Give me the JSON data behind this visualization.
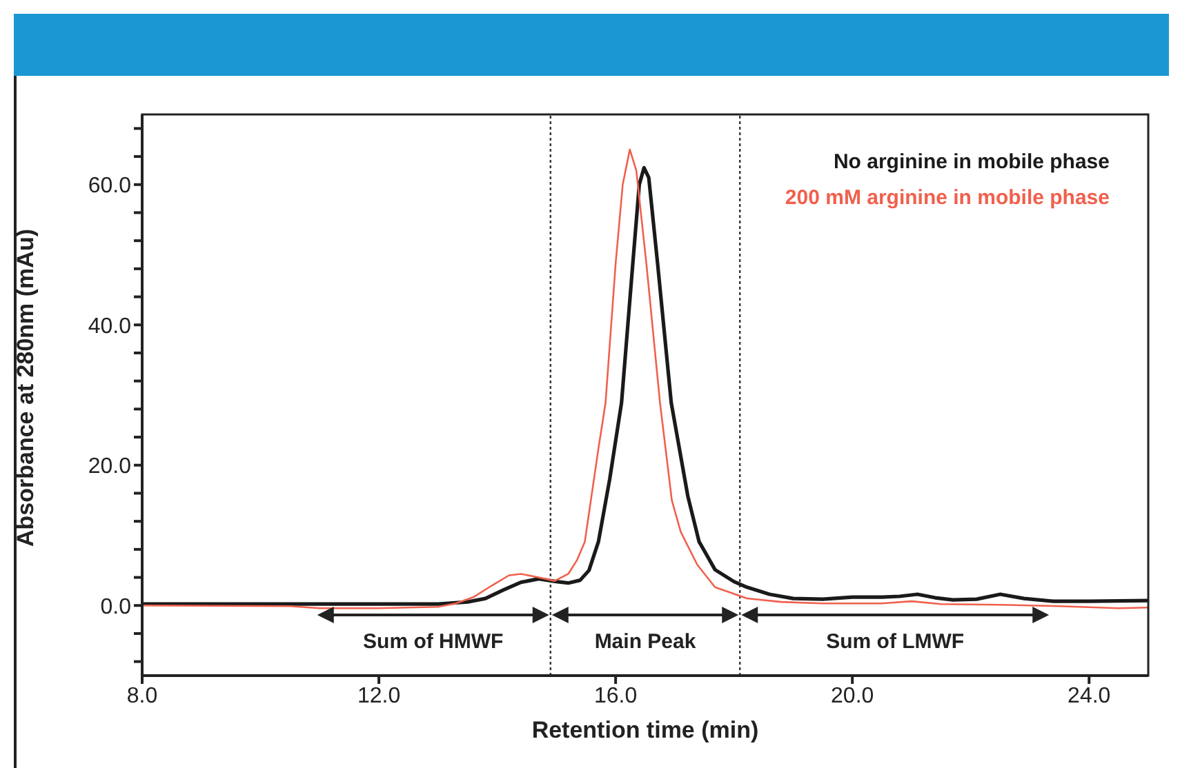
{
  "chart_data": {
    "type": "line",
    "xlabel": "Retention time (min)",
    "ylabel": "Absorbance at 280nm (mAu)",
    "xlim": [
      8,
      25
    ],
    "xticks": [
      {
        "value": 8,
        "label": "8.0"
      },
      {
        "value": 12,
        "label": "12.0"
      },
      {
        "value": 16,
        "label": "16.0"
      },
      {
        "value": 20,
        "label": "20.0"
      },
      {
        "value": 24,
        "label": "24.0"
      }
    ],
    "ylim": [
      -10,
      70
    ],
    "yticks": [
      {
        "value": -8,
        "label": null
      },
      {
        "value": -4,
        "label": null
      },
      {
        "value": 0,
        "label": "0.0"
      },
      {
        "value": 4,
        "label": null
      },
      {
        "value": 8,
        "label": null
      },
      {
        "value": 12,
        "label": null
      },
      {
        "value": 16,
        "label": null
      },
      {
        "value": 20,
        "label": "20.0"
      },
      {
        "value": 24,
        "label": null
      },
      {
        "value": 28,
        "label": null
      },
      {
        "value": 32,
        "label": null
      },
      {
        "value": 36,
        "label": null
      },
      {
        "value": 40,
        "label": "40.0"
      },
      {
        "value": 44,
        "label": null
      },
      {
        "value": 48,
        "label": null
      },
      {
        "value": 52,
        "label": null
      },
      {
        "value": 56,
        "label": null
      },
      {
        "value": 60,
        "label": "60.0"
      },
      {
        "value": 64,
        "label": null
      },
      {
        "value": 68,
        "label": null
      }
    ],
    "grid": false,
    "legend": "top right",
    "marker": "none",
    "line_style": "solid",
    "series": [
      {
        "name": "No arginine in mobile phase",
        "color": "#1a1a1a",
        "x": [
          8,
          10,
          12,
          13,
          13.5,
          13.8,
          14.1,
          14.4,
          14.7,
          15.0,
          15.2,
          15.4,
          15.55,
          15.71,
          15.9,
          16.1,
          16.29,
          16.4,
          16.48,
          16.56,
          16.71,
          16.94,
          17.22,
          17.41,
          17.68,
          18.0,
          18.22,
          18.6,
          19.0,
          19.5,
          20.0,
          20.5,
          20.8,
          21.1,
          21.4,
          21.7,
          22.1,
          22.5,
          22.9,
          23.4,
          24,
          25
        ],
        "values": [
          0.2,
          0.2,
          0.2,
          0.2,
          0.5,
          1.0,
          2.2,
          3.3,
          3.8,
          3.4,
          3.2,
          3.6,
          5.0,
          9.1,
          18,
          28.9,
          48.7,
          60,
          62.4,
          61,
          48.7,
          28.9,
          15.6,
          9.1,
          5.1,
          3.4,
          2.6,
          1.6,
          1.0,
          0.9,
          1.2,
          1.2,
          1.3,
          1.6,
          1.1,
          0.8,
          0.9,
          1.6,
          1.0,
          0.6,
          0.6,
          0.7
        ]
      },
      {
        "name": "200 mM arginine in mobile phase",
        "color": "#f0604d",
        "x": [
          8,
          10.5,
          11,
          12,
          13,
          13.3,
          13.6,
          13.9,
          14.2,
          14.4,
          14.7,
          14.97,
          15.2,
          15.35,
          15.48,
          15.71,
          15.83,
          16.0,
          16.12,
          16.24,
          16.35,
          16.52,
          16.75,
          16.95,
          17.1,
          17.38,
          17.68,
          18.22,
          18.8,
          19.5,
          20.5,
          21,
          21.5,
          22.5,
          23.5,
          24.5,
          25
        ],
        "values": [
          0.0,
          -0.1,
          -0.4,
          -0.4,
          -0.2,
          0.3,
          1.2,
          2.8,
          4.3,
          4.5,
          4.0,
          3.5,
          4.5,
          6.5,
          9.1,
          22.4,
          28.9,
          48.7,
          60,
          65,
          62,
          48.7,
          28.9,
          15,
          10.5,
          5.8,
          2.6,
          1.0,
          0.5,
          0.3,
          0.3,
          0.6,
          0.2,
          0.1,
          -0.1,
          -0.4,
          -0.3
        ]
      }
    ],
    "ref_lines": [
      {
        "axis": "x",
        "value": 14.9,
        "line_style": "dotted",
        "color": "#333333"
      },
      {
        "axis": "x",
        "value": 18.1,
        "line_style": "dotted",
        "color": "#333333"
      }
    ],
    "annotations": [
      "Sum of HMWF",
      "Main Peak",
      "Sum of LMWF"
    ]
  }
}
